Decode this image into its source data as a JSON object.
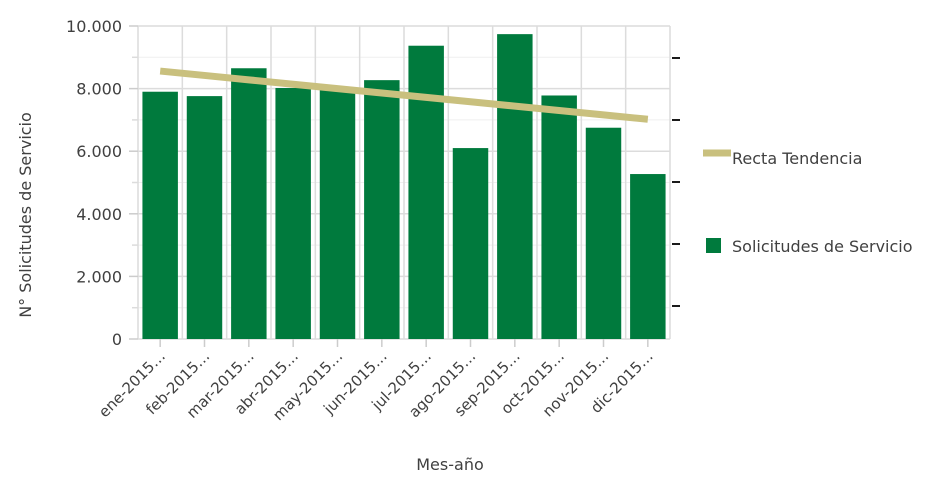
{
  "chart_data": {
    "type": "bar",
    "title": "",
    "xlabel": "Mes-año",
    "ylabel": "N° Solicitudes de Servicio",
    "categories": [
      "ene-2015…",
      "feb-2015…",
      "mar-2015…",
      "abr-2015…",
      "may-2015…",
      "jun-2015…",
      "jul-2015…",
      "ago-2015…",
      "sep-2015…",
      "oct-2015…",
      "nov-2015…",
      "dic-2015…"
    ],
    "y_ticks": [
      "0",
      "2.000",
      "4.000",
      "6.000",
      "8.000",
      "10.000"
    ],
    "ylim": [
      0,
      10000
    ],
    "grid": true,
    "legend_position": "right",
    "series": [
      {
        "name": "Solicitudes de Servicio",
        "type": "bar",
        "color": "#007a3d",
        "values": [
          7900,
          7760,
          8650,
          8020,
          8000,
          8270,
          9370,
          6100,
          9740,
          7780,
          6750,
          5270
        ]
      },
      {
        "name": "Recta Tendencia",
        "type": "line",
        "color": "#c9c07e",
        "values": [
          8560,
          8420,
          8280,
          8140,
          8000,
          7860,
          7720,
          7580,
          7440,
          7300,
          7160,
          7020
        ]
      }
    ]
  }
}
